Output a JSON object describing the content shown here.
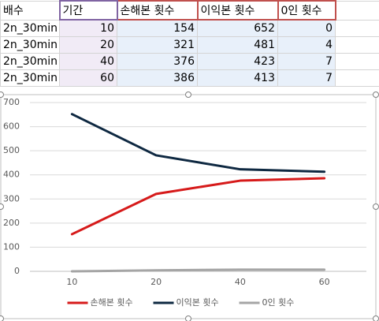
{
  "table": {
    "header": [
      "배수",
      "기간",
      "손해본 횟수",
      "이익본 횟수",
      "0인 횟수"
    ],
    "rows": [
      [
        "2n_30min",
        10,
        154,
        652,
        0
      ],
      [
        "2n_30min",
        20,
        321,
        481,
        4
      ],
      [
        "2n_30min",
        40,
        376,
        423,
        7
      ],
      [
        "2n_30min",
        60,
        386,
        413,
        7
      ]
    ]
  },
  "chart_data": {
    "type": "line",
    "categories": [
      "10",
      "20",
      "40",
      "60"
    ],
    "series": [
      {
        "name": "손해본 횟수",
        "color": "#d61a1a",
        "values": [
          154,
          321,
          376,
          386
        ]
      },
      {
        "name": "이익본 횟수",
        "color": "#0e2841",
        "values": [
          652,
          481,
          423,
          413
        ]
      },
      {
        "name": "0인 횟수",
        "color": "#a5a5a5",
        "values": [
          0,
          4,
          7,
          7
        ]
      }
    ],
    "ylim": [
      0,
      700
    ],
    "yticks": [
      0,
      100,
      200,
      300,
      400,
      500,
      600,
      700
    ],
    "grid": true,
    "legend": "bottom"
  }
}
